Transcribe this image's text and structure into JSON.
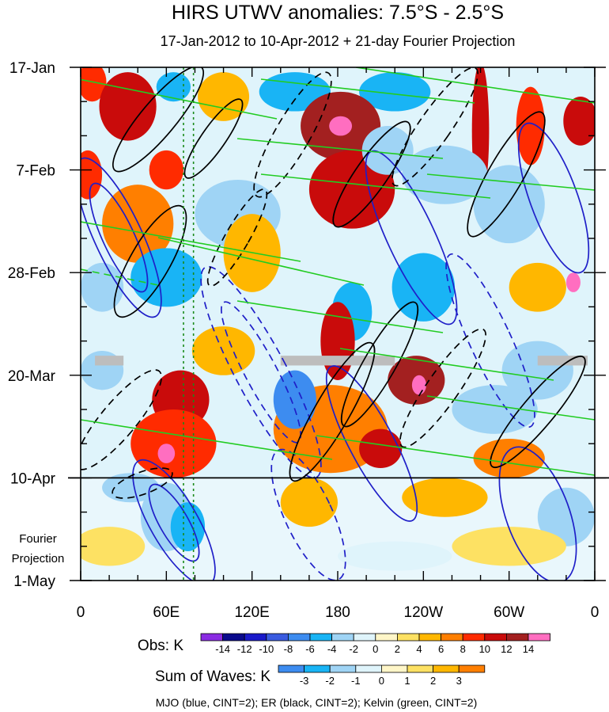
{
  "chart_data": {
    "type": "heatmap",
    "title": "HIRS UTWV anomalies: 7.5°S - 2.5°S",
    "subtitle": "17-Jan-2012 to 10-Apr-2012 + 21-day Fourier Projection",
    "x_ticks": [
      {
        "label": "0",
        "lon": 0
      },
      {
        "label": "60E",
        "lon": 60
      },
      {
        "label": "120E",
        "lon": 120
      },
      {
        "label": "180",
        "lon": 180
      },
      {
        "label": "120W",
        "lon": 240
      },
      {
        "label": "60W",
        "lon": 300
      },
      {
        "label": "0",
        "lon": 360
      }
    ],
    "xlim": [
      0,
      360
    ],
    "y_ticks": [
      {
        "label": "17-Jan",
        "day": 0
      },
      {
        "label": "7-Feb",
        "day": 21
      },
      {
        "label": "28-Feb",
        "day": 42
      },
      {
        "label": "20-Mar",
        "day": 63
      },
      {
        "label": "10-Apr",
        "day": 84
      },
      {
        "label": "1-May",
        "day": 105
      }
    ],
    "ylim": [
      0,
      105
    ],
    "observation_end_day": 84,
    "projection_label_line1": "Fourier",
    "projection_label_line2": "Projection",
    "reference_lines_lon": [
      72,
      79
    ],
    "obs_colorbar": {
      "title": "Obs: K",
      "levels": [
        -14,
        -12,
        -10,
        -8,
        -6,
        -4,
        -2,
        0,
        2,
        4,
        6,
        8,
        10,
        12,
        14
      ],
      "colors": [
        "#8a2be2",
        "#0a0a8c",
        "#1a1aca",
        "#3a5be0",
        "#3d8cf0",
        "#19b4f5",
        "#9fd4f5",
        "#dff4fb",
        "#fff6c8",
        "#fde163",
        "#ffb700",
        "#ff7f00",
        "#ff2b00",
        "#c90b0b",
        "#a32020",
        "#ff6ec0"
      ]
    },
    "waves_colorbar": {
      "title": "Sum of Waves: K",
      "levels": [
        -3,
        -2,
        -1,
        0,
        1,
        2,
        3
      ],
      "colors": [
        "#3d8cf0",
        "#19b4f5",
        "#9fd4f5",
        "#dff4fb",
        "#fff6c8",
        "#fde163",
        "#ffb700",
        "#ff7f00"
      ]
    },
    "footer": "MJO (blue, CINT=2); ER (black, CINT=2); Kelvin (green, CINT=2)",
    "contour_series": [
      {
        "name": "MJO",
        "color": "#1f1fc8",
        "cint": 2
      },
      {
        "name": "ER",
        "color": "#000000",
        "cint": 2
      },
      {
        "name": "Kelvin",
        "color": "#22cc22",
        "cint": 2
      }
    ],
    "anomaly_features": [
      {
        "lon": 8,
        "day": 3,
        "rx": 10,
        "ry": 4,
        "value": 8
      },
      {
        "lon": 65,
        "day": 4,
        "rx": 12,
        "ry": 3,
        "value": -6
      },
      {
        "lon": 150,
        "day": 5,
        "rx": 25,
        "ry": 4,
        "value": -6
      },
      {
        "lon": 220,
        "day": 5,
        "rx": 25,
        "ry": 4,
        "value": -6
      },
      {
        "lon": 33,
        "day": 8,
        "rx": 20,
        "ry": 7,
        "value": 10
      },
      {
        "lon": 100,
        "day": 6,
        "rx": 18,
        "ry": 5,
        "value": 4
      },
      {
        "lon": 182,
        "day": 12,
        "rx": 28,
        "ry": 7,
        "value": 12
      },
      {
        "lon": 182,
        "day": 12,
        "rx": 8,
        "ry": 2,
        "value": 16
      },
      {
        "lon": 280,
        "day": 13,
        "rx": 6,
        "ry": 14,
        "value": 10
      },
      {
        "lon": 315,
        "day": 12,
        "rx": 10,
        "ry": 8,
        "value": 8
      },
      {
        "lon": 350,
        "day": 11,
        "rx": 12,
        "ry": 5,
        "value": 10
      },
      {
        "lon": 5,
        "day": 22,
        "rx": 10,
        "ry": 5,
        "value": 8
      },
      {
        "lon": 60,
        "day": 21,
        "rx": 12,
        "ry": 4,
        "value": 8
      },
      {
        "lon": 190,
        "day": 25,
        "rx": 30,
        "ry": 8,
        "value": 10
      },
      {
        "lon": 215,
        "day": 17,
        "rx": 18,
        "ry": 5,
        "value": -4
      },
      {
        "lon": 300,
        "day": 28,
        "rx": 25,
        "ry": 8,
        "value": -4
      },
      {
        "lon": 255,
        "day": 22,
        "rx": 30,
        "ry": 6,
        "value": -4
      },
      {
        "lon": 40,
        "day": 32,
        "rx": 25,
        "ry": 8,
        "value": 6
      },
      {
        "lon": 110,
        "day": 30,
        "rx": 30,
        "ry": 7,
        "value": -4
      },
      {
        "lon": 120,
        "day": 38,
        "rx": 20,
        "ry": 8,
        "value": 4
      },
      {
        "lon": 240,
        "day": 45,
        "rx": 22,
        "ry": 7,
        "value": -6
      },
      {
        "lon": 320,
        "day": 45,
        "rx": 20,
        "ry": 5,
        "value": 4
      },
      {
        "lon": 345,
        "day": 44,
        "rx": 5,
        "ry": 2,
        "value": 14
      },
      {
        "lon": 190,
        "day": 50,
        "rx": 14,
        "ry": 6,
        "value": -6
      },
      {
        "lon": 60,
        "day": 43,
        "rx": 25,
        "ry": 6,
        "value": -6
      },
      {
        "lon": 15,
        "day": 45,
        "rx": 15,
        "ry": 5,
        "value": -4
      },
      {
        "lon": 180,
        "day": 56,
        "rx": 12,
        "ry": 8,
        "value": 10
      },
      {
        "lon": 100,
        "day": 58,
        "rx": 22,
        "ry": 5,
        "value": 4
      },
      {
        "lon": 235,
        "day": 64,
        "rx": 20,
        "ry": 5,
        "value": 12
      },
      {
        "lon": 237,
        "day": 65,
        "rx": 5,
        "ry": 2,
        "value": 16
      },
      {
        "lon": 320,
        "day": 62,
        "rx": 25,
        "ry": 6,
        "value": -4
      },
      {
        "lon": 70,
        "day": 68,
        "rx": 20,
        "ry": 6,
        "value": 10
      },
      {
        "lon": 65,
        "day": 77,
        "rx": 30,
        "ry": 7,
        "value": 8
      },
      {
        "lon": 60,
        "day": 79,
        "rx": 6,
        "ry": 2,
        "value": 14
      },
      {
        "lon": 15,
        "day": 62,
        "rx": 15,
        "ry": 4,
        "value": -4
      },
      {
        "lon": 175,
        "day": 74,
        "rx": 40,
        "ry": 9,
        "value": 6
      },
      {
        "lon": 210,
        "day": 78,
        "rx": 15,
        "ry": 4,
        "value": 10
      },
      {
        "lon": 290,
        "day": 70,
        "rx": 30,
        "ry": 5,
        "value": -4
      },
      {
        "lon": 300,
        "day": 80,
        "rx": 25,
        "ry": 4,
        "value": 6
      },
      {
        "lon": 150,
        "day": 68,
        "rx": 15,
        "ry": 6,
        "value": -8
      },
      {
        "lon": 35,
        "day": 86,
        "rx": 20,
        "ry": 3,
        "value": -2
      },
      {
        "lon": 60,
        "day": 92,
        "rx": 18,
        "ry": 7,
        "value": -2
      },
      {
        "lon": 75,
        "day": 94,
        "rx": 12,
        "ry": 5,
        "value": -3
      },
      {
        "lon": 160,
        "day": 89,
        "rx": 20,
        "ry": 5,
        "value": 2
      },
      {
        "lon": 255,
        "day": 88,
        "rx": 30,
        "ry": 4,
        "value": 2
      },
      {
        "lon": 340,
        "day": 92,
        "rx": 20,
        "ry": 6,
        "value": -2
      },
      {
        "lon": 20,
        "day": 98,
        "rx": 25,
        "ry": 4,
        "value": 1
      },
      {
        "lon": 300,
        "day": 98,
        "rx": 40,
        "ry": 4,
        "value": 1
      },
      {
        "lon": 220,
        "day": 100,
        "rx": 40,
        "ry": 3,
        "value": -1
      }
    ],
    "missing_data_bands": [
      {
        "lon_start": 10,
        "lon_end": 30,
        "day_start": 59,
        "day_end": 61
      },
      {
        "lon_start": 140,
        "lon_end": 220,
        "day_start": 59,
        "day_end": 61
      },
      {
        "lon_start": 320,
        "lon_end": 355,
        "day_start": 59,
        "day_end": 61
      }
    ]
  }
}
